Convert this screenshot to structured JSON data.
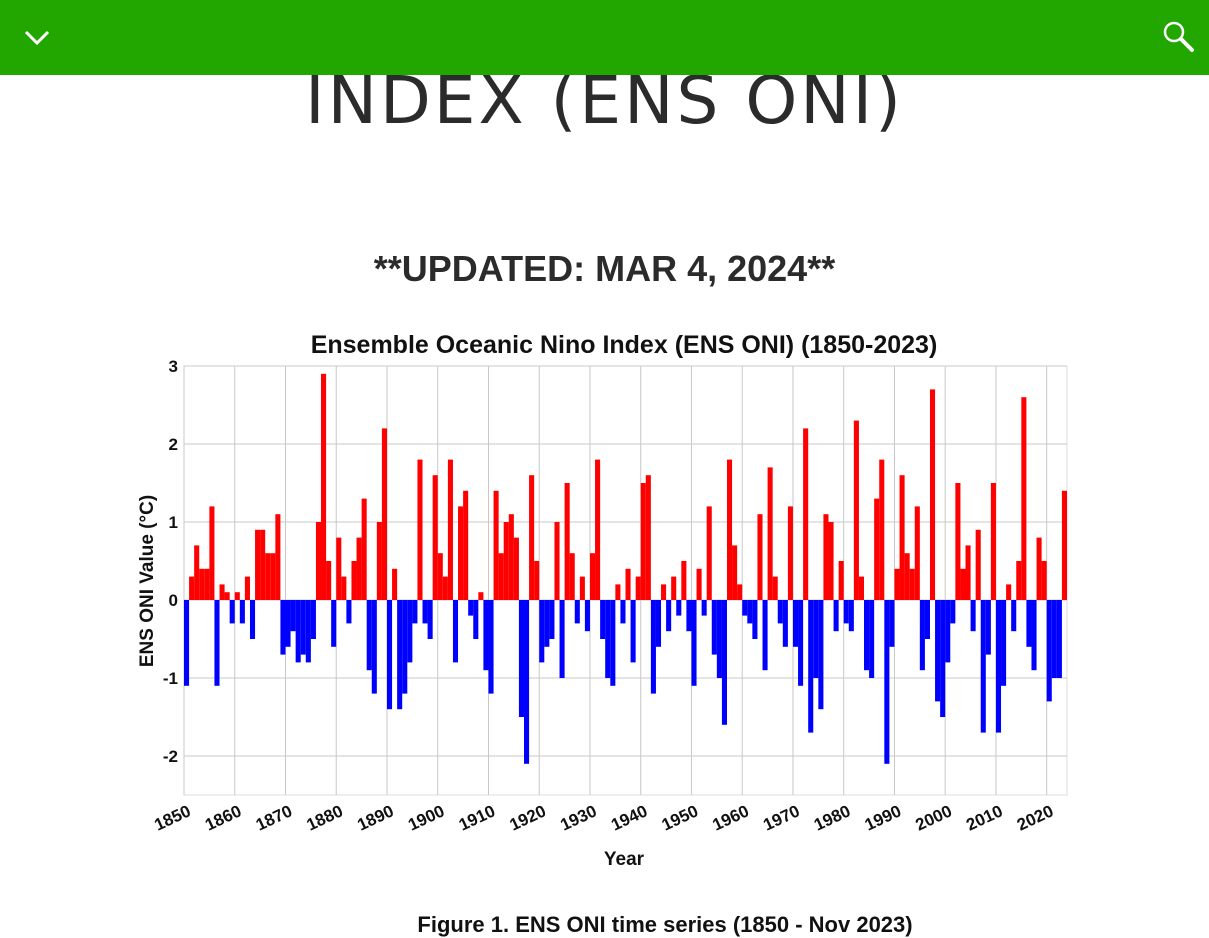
{
  "header": {
    "title": "INDEX (ENS ONI)",
    "subtitle": "**UPDATED: MAR 4, 2024**",
    "caption": "Figure 1. ENS ONI time series (1850 - Nov 2023)"
  },
  "chart_data": {
    "type": "bar",
    "title": "Ensemble Oceanic Nino Index (ENS ONI) (1850-2023)",
    "x_label": "Year",
    "y_label": "ENS ONI Value (°C)",
    "positive_color": "#ff0000",
    "negative_color": "#0000ff",
    "grid": true,
    "xlim": [
      1850,
      2024
    ],
    "ylim": [
      -2.5,
      3
    ],
    "xticks": [
      1850,
      1860,
      1870,
      1880,
      1890,
      1900,
      1910,
      1920,
      1930,
      1940,
      1950,
      1960,
      1970,
      1980,
      1990,
      2000,
      2010,
      2020
    ],
    "yticks": [
      -2,
      -1,
      0,
      1,
      2,
      3
    ],
    "x": [
      1850,
      1851,
      1852,
      1853,
      1854,
      1855,
      1856,
      1857,
      1858,
      1859,
      1860,
      1861,
      1862,
      1863,
      1864,
      1865,
      1866,
      1867,
      1868,
      1869,
      1870,
      1871,
      1872,
      1873,
      1874,
      1875,
      1876,
      1877,
      1878,
      1879,
      1880,
      1881,
      1882,
      1883,
      1884,
      1885,
      1886,
      1887,
      1888,
      1889,
      1890,
      1891,
      1892,
      1893,
      1894,
      1895,
      1896,
      1897,
      1898,
      1899,
      1900,
      1901,
      1902,
      1903,
      1904,
      1905,
      1906,
      1907,
      1908,
      1909,
      1910,
      1911,
      1912,
      1913,
      1914,
      1915,
      1916,
      1917,
      1918,
      1919,
      1920,
      1921,
      1922,
      1923,
      1924,
      1925,
      1926,
      1927,
      1928,
      1929,
      1930,
      1931,
      1932,
      1933,
      1934,
      1935,
      1936,
      1937,
      1938,
      1939,
      1940,
      1941,
      1942,
      1943,
      1944,
      1945,
      1946,
      1947,
      1948,
      1949,
      1950,
      1951,
      1952,
      1953,
      1954,
      1955,
      1956,
      1957,
      1958,
      1959,
      1960,
      1961,
      1962,
      1963,
      1964,
      1965,
      1966,
      1967,
      1968,
      1969,
      1970,
      1971,
      1972,
      1973,
      1974,
      1975,
      1976,
      1977,
      1978,
      1979,
      1980,
      1981,
      1982,
      1983,
      1984,
      1985,
      1986,
      1987,
      1988,
      1989,
      1990,
      1991,
      1992,
      1993,
      1994,
      1995,
      1996,
      1997,
      1998,
      1999,
      2000,
      2001,
      2002,
      2003,
      2004,
      2005,
      2006,
      2007,
      2008,
      2009,
      2010,
      2011,
      2012,
      2013,
      2014,
      2015,
      2016,
      2017,
      2018,
      2019,
      2020,
      2021,
      2022,
      2023
    ],
    "values": [
      -1.1,
      0.3,
      0.7,
      0.4,
      0.4,
      1.2,
      -1.1,
      0.2,
      0.1,
      -0.3,
      0.1,
      -0.3,
      0.3,
      -0.5,
      0.9,
      0.9,
      0.6,
      0.6,
      1.1,
      -0.7,
      -0.6,
      -0.4,
      -0.8,
      -0.7,
      -0.8,
      -0.5,
      1.0,
      2.9,
      0.5,
      -0.6,
      0.8,
      0.3,
      -0.3,
      0.5,
      0.8,
      1.3,
      -0.9,
      -1.2,
      1.0,
      2.2,
      -1.4,
      0.4,
      -1.4,
      -1.2,
      -0.8,
      -0.3,
      1.8,
      -0.3,
      -0.5,
      1.6,
      0.6,
      0.3,
      1.8,
      -0.8,
      1.2,
      1.4,
      -0.2,
      -0.5,
      0.1,
      -0.9,
      -1.2,
      1.4,
      0.6,
      1.0,
      1.1,
      0.8,
      -1.5,
      -2.1,
      1.6,
      0.5,
      -0.8,
      -0.6,
      -0.5,
      1.0,
      -1.0,
      1.5,
      0.6,
      -0.3,
      0.3,
      -0.4,
      0.6,
      1.8,
      -0.5,
      -1.0,
      -1.1,
      0.2,
      -0.3,
      0.4,
      -0.8,
      0.3,
      1.5,
      1.6,
      -1.2,
      -0.6,
      0.2,
      -0.4,
      0.3,
      -0.2,
      0.5,
      -0.4,
      -1.1,
      0.4,
      -0.2,
      1.2,
      -0.7,
      -1.0,
      -1.6,
      1.8,
      0.7,
      0.2,
      -0.2,
      -0.3,
      -0.5,
      1.1,
      -0.9,
      1.7,
      0.3,
      -0.3,
      -0.6,
      1.2,
      -0.6,
      -1.1,
      2.2,
      -1.7,
      -1.0,
      -1.4,
      1.1,
      1.0,
      -0.4,
      0.5,
      -0.3,
      -0.4,
      2.3,
      0.3,
      -0.9,
      -1.0,
      1.3,
      1.8,
      -2.1,
      -0.6,
      0.4,
      1.6,
      0.6,
      0.4,
      1.2,
      -0.9,
      -0.5,
      2.7,
      -1.3,
      -1.5,
      -0.8,
      -0.3,
      1.5,
      0.4,
      0.7,
      -0.4,
      0.9,
      -1.7,
      -0.7,
      1.5,
      -1.7,
      -1.1,
      0.2,
      -0.4,
      0.5,
      2.6,
      -0.6,
      -0.9,
      0.8,
      0.5,
      -1.3,
      -1.0,
      -1.0,
      1.4
    ]
  }
}
